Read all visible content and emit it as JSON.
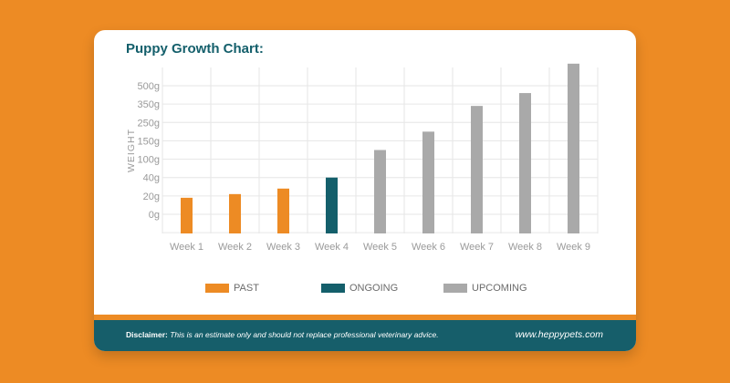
{
  "card": {
    "title": "Puppy Growth Chart:"
  },
  "chart_data": {
    "type": "bar",
    "title": "Puppy Growth Chart:",
    "ylabel": "WEIGHT",
    "xlabel": "",
    "categories": [
      "Week 1",
      "Week 2",
      "Week 3",
      "Week 4",
      "Week 5",
      "Week 6",
      "Week 7",
      "Week 8",
      "Week 9"
    ],
    "y_tick_labels": [
      "0g",
      "20g",
      "40g",
      "100g",
      "150g",
      "250g",
      "350g",
      "500g"
    ],
    "values_tick_units": [
      0.9,
      1.1,
      1.4,
      2.0,
      3.5,
      4.5,
      5.9,
      6.6,
      8.2
    ],
    "status": [
      "past",
      "past",
      "past",
      "ongoing",
      "upcoming",
      "upcoming",
      "upcoming",
      "upcoming",
      "upcoming"
    ],
    "grid": true,
    "legend": [
      {
        "key": "past",
        "label": "PAST",
        "color": "#ED8B24"
      },
      {
        "key": "ongoing",
        "label": "ONGOING",
        "color": "#145F6B"
      },
      {
        "key": "upcoming",
        "label": "UPCOMING",
        "color": "#A9A9A9"
      }
    ],
    "legend_position": "bottom"
  },
  "footer": {
    "disclaimer_label": "Disclaimer:",
    "disclaimer_text": "This is an estimate only and should not replace professional veterinary advice.",
    "website": "www.heppypets.com"
  }
}
